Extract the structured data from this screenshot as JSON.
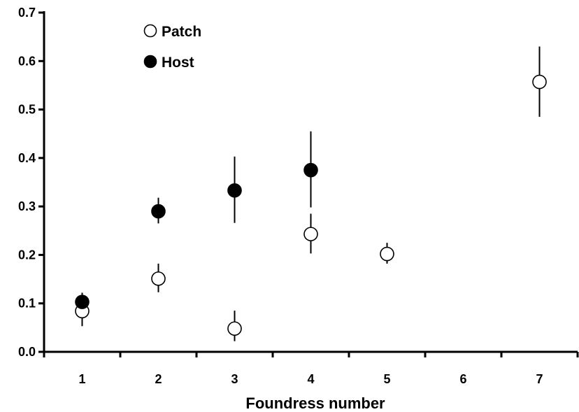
{
  "chart_data": {
    "type": "scatter",
    "title": "",
    "xlabel": "Foundress number",
    "ylabel": "",
    "xlim": [
      0.5,
      7.5
    ],
    "ylim": [
      0.0,
      0.7
    ],
    "x_ticks": [
      1,
      2,
      3,
      4,
      5,
      6,
      7
    ],
    "y_ticks": [
      "0.0",
      "0.1",
      "0.2",
      "0.3",
      "0.4",
      "0.5",
      "0.6",
      "0.7"
    ],
    "legend_position": "top-left",
    "grid": false,
    "series": [
      {
        "name": "Patch",
        "marker": "open-circle",
        "color": "#000000",
        "points": [
          {
            "x": 1,
            "y": 0.084,
            "low": 0.053,
            "high": 0.108
          },
          {
            "x": 2,
            "y": 0.151,
            "low": 0.123,
            "high": 0.182
          },
          {
            "x": 3,
            "y": 0.048,
            "low": 0.022,
            "high": 0.085
          },
          {
            "x": 4,
            "y": 0.243,
            "low": 0.203,
            "high": 0.285
          },
          {
            "x": 5,
            "y": 0.202,
            "low": 0.182,
            "high": 0.225
          },
          {
            "x": 7,
            "y": 0.557,
            "low": 0.485,
            "high": 0.63
          }
        ]
      },
      {
        "name": "Host",
        "marker": "filled-circle",
        "color": "#000000",
        "points": [
          {
            "x": 1,
            "y": 0.103,
            "low": 0.09,
            "high": 0.122
          },
          {
            "x": 2,
            "y": 0.29,
            "low": 0.265,
            "high": 0.318
          },
          {
            "x": 3,
            "y": 0.333,
            "low": 0.266,
            "high": 0.403
          },
          {
            "x": 4,
            "y": 0.375,
            "low": 0.298,
            "high": 0.455
          }
        ]
      }
    ]
  }
}
